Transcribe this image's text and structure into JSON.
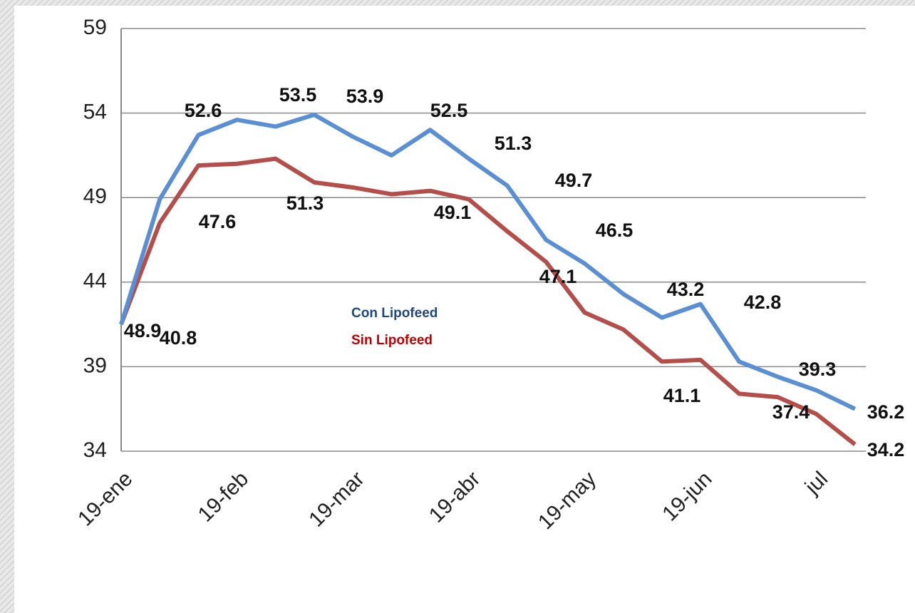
{
  "chart_data": {
    "type": "line",
    "categories": [
      "19-ene",
      null,
      null,
      "19-feb",
      null,
      null,
      "19-mar",
      null,
      null,
      "19-abr",
      null,
      null,
      "19-may",
      null,
      null,
      "19-jun",
      null,
      null,
      "jul",
      null
    ],
    "series": [
      {
        "name": "Con Lipofeed",
        "color": "#5b8fd3",
        "values": [
          41.5,
          48.9,
          52.7,
          53.6,
          53.2,
          53.9,
          52.6,
          51.5,
          53.0,
          51.3,
          49.7,
          46.5,
          45.1,
          43.3,
          41.9,
          42.7,
          39.3,
          38.4,
          37.6,
          36.5
        ]
      },
      {
        "name": "Sin Lipofeed",
        "color": "#b44e4b",
        "values": [
          41.5,
          47.5,
          50.9,
          51.0,
          51.3,
          49.9,
          49.6,
          49.2,
          49.4,
          48.9,
          47.0,
          45.2,
          42.2,
          41.2,
          39.3,
          39.4,
          37.4,
          37.2,
          36.2,
          34.4
        ]
      }
    ],
    "annotations": [
      "48.9",
      "40.8",
      "52.6",
      "47.6",
      "53.5",
      "51.3",
      "53.9",
      "52.5",
      "49.1",
      "51.3",
      "49.7",
      "46.5",
      "47.1",
      "43.2",
      "41.1",
      "42.8",
      "39.3",
      "37.4",
      "36.2",
      "34.2"
    ],
    "legend_colors": [
      "#1f497d",
      "#c00000"
    ],
    "ylim": [
      34,
      59
    ],
    "yticks": [
      34,
      39,
      44,
      49,
      54,
      59
    ],
    "grid": true
  }
}
